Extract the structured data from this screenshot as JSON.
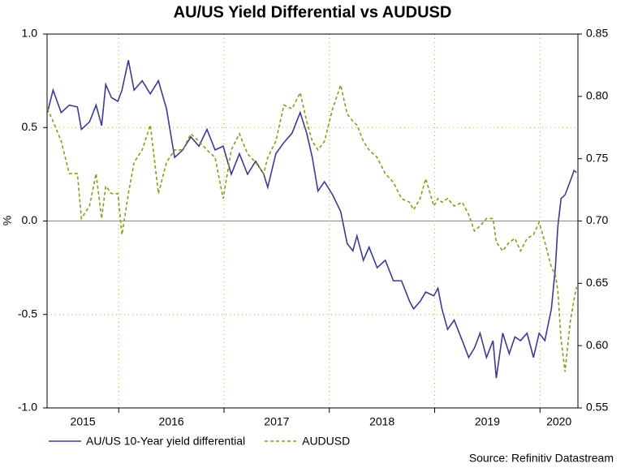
{
  "chart_data": {
    "type": "line",
    "title": "AU/US Yield Differential vs AUDUSD",
    "y_label": "%",
    "source": "Source: Refinitiv Datastream",
    "x": [
      2015.323,
      2015.377,
      2015.454,
      2015.531,
      2015.608,
      2015.646,
      2015.723,
      2015.785,
      2015.838,
      2015.877,
      2015.931,
      2015.992,
      2016.031,
      2016.092,
      2016.146,
      2016.223,
      2016.3,
      2016.377,
      2016.454,
      2016.531,
      2016.608,
      2016.685,
      2016.762,
      2016.838,
      2016.915,
      2016.992,
      2017.069,
      2017.146,
      2017.223,
      2017.3,
      2017.377,
      2017.415,
      2017.492,
      2017.569,
      2017.646,
      2017.723,
      2017.785,
      2017.838,
      2017.892,
      2017.954,
      2018.031,
      2018.108,
      2018.169,
      2018.223,
      2018.262,
      2018.323,
      2018.377,
      2018.454,
      2018.531,
      2018.608,
      2018.685,
      2018.762,
      2018.8,
      2018.862,
      2018.915,
      2018.992,
      2019.031,
      2019.069,
      2019.123,
      2019.185,
      2019.262,
      2019.323,
      2019.377,
      2019.431,
      2019.492,
      2019.554,
      2019.585,
      2019.646,
      2019.708,
      2019.762,
      2019.815,
      2019.877,
      2019.938,
      2019.992,
      2020.046,
      2020.108,
      2020.146,
      2020.169,
      2020.2,
      2020.238,
      2020.285,
      2020.323,
      2020.346
    ],
    "series": [
      {
        "name": "AU/US 10-Year yield differential",
        "color": "#3b3b8f",
        "axis": "y",
        "values": [
          0.58,
          0.7,
          0.58,
          0.62,
          0.61,
          0.49,
          0.53,
          0.62,
          0.51,
          0.73,
          0.66,
          0.64,
          0.7,
          0.86,
          0.7,
          0.75,
          0.68,
          0.75,
          0.6,
          0.34,
          0.38,
          0.45,
          0.4,
          0.49,
          0.38,
          0.4,
          0.25,
          0.36,
          0.25,
          0.32,
          0.25,
          0.18,
          0.36,
          0.42,
          0.47,
          0.58,
          0.47,
          0.34,
          0.16,
          0.21,
          0.14,
          0.05,
          -0.12,
          -0.16,
          -0.08,
          -0.21,
          -0.14,
          -0.25,
          -0.21,
          -0.32,
          -0.32,
          -0.43,
          -0.47,
          -0.43,
          -0.38,
          -0.4,
          -0.36,
          -0.47,
          -0.58,
          -0.53,
          -0.64,
          -0.73,
          -0.68,
          -0.6,
          -0.73,
          -0.64,
          -0.84,
          -0.6,
          -0.71,
          -0.62,
          -0.64,
          -0.6,
          -0.73,
          -0.6,
          -0.64,
          -0.47,
          -0.25,
          -0.03,
          0.12,
          0.14,
          0.21,
          0.27,
          0.26
        ]
      },
      {
        "name": "AUDUSD",
        "color": "#8b9a1a",
        "axis": "y2",
        "dashed": true,
        "values": [
          0.79,
          0.78,
          0.764,
          0.738,
          0.738,
          0.702,
          0.712,
          0.738,
          0.702,
          0.728,
          0.722,
          0.722,
          0.689,
          0.722,
          0.747,
          0.757,
          0.777,
          0.722,
          0.747,
          0.757,
          0.757,
          0.77,
          0.764,
          0.757,
          0.751,
          0.718,
          0.757,
          0.77,
          0.754,
          0.747,
          0.738,
          0.751,
          0.764,
          0.793,
          0.79,
          0.803,
          0.78,
          0.764,
          0.757,
          0.764,
          0.79,
          0.809,
          0.786,
          0.78,
          0.777,
          0.764,
          0.757,
          0.751,
          0.738,
          0.731,
          0.718,
          0.715,
          0.709,
          0.718,
          0.734,
          0.712,
          0.718,
          0.715,
          0.718,
          0.712,
          0.715,
          0.705,
          0.692,
          0.696,
          0.702,
          0.702,
          0.683,
          0.676,
          0.683,
          0.686,
          0.676,
          0.686,
          0.689,
          0.699,
          0.683,
          0.663,
          0.657,
          0.644,
          0.605,
          0.579,
          0.618,
          0.637,
          0.647
        ]
      }
    ],
    "xlim": [
      2015.32,
      2020.36
    ],
    "xticks": [
      {
        "value": 2015,
        "label": "2015"
      },
      {
        "value": 2016,
        "label": "2016"
      },
      {
        "value": 2017,
        "label": "2017"
      },
      {
        "value": 2018,
        "label": "2018"
      },
      {
        "value": 2019,
        "label": "2019"
      },
      {
        "value": 2020,
        "label": "2020"
      }
    ],
    "ylim": [
      -1,
      1
    ],
    "yticks": [
      {
        "value": 1,
        "label": "1.0"
      },
      0.5,
      {
        "value": 0,
        "label": "0.0"
      },
      -0.5,
      {
        "value": -1,
        "label": "-1.0"
      }
    ],
    "y2lim": [
      0.55,
      0.85
    ],
    "y2ticks": [
      0.85,
      {
        "value": 0.8,
        "label": "0.80"
      },
      0.75,
      {
        "value": 0.7,
        "label": "0.70"
      },
      0.65,
      {
        "value": 0.6,
        "label": "0.60"
      },
      0.55
    ],
    "grid": true
  }
}
